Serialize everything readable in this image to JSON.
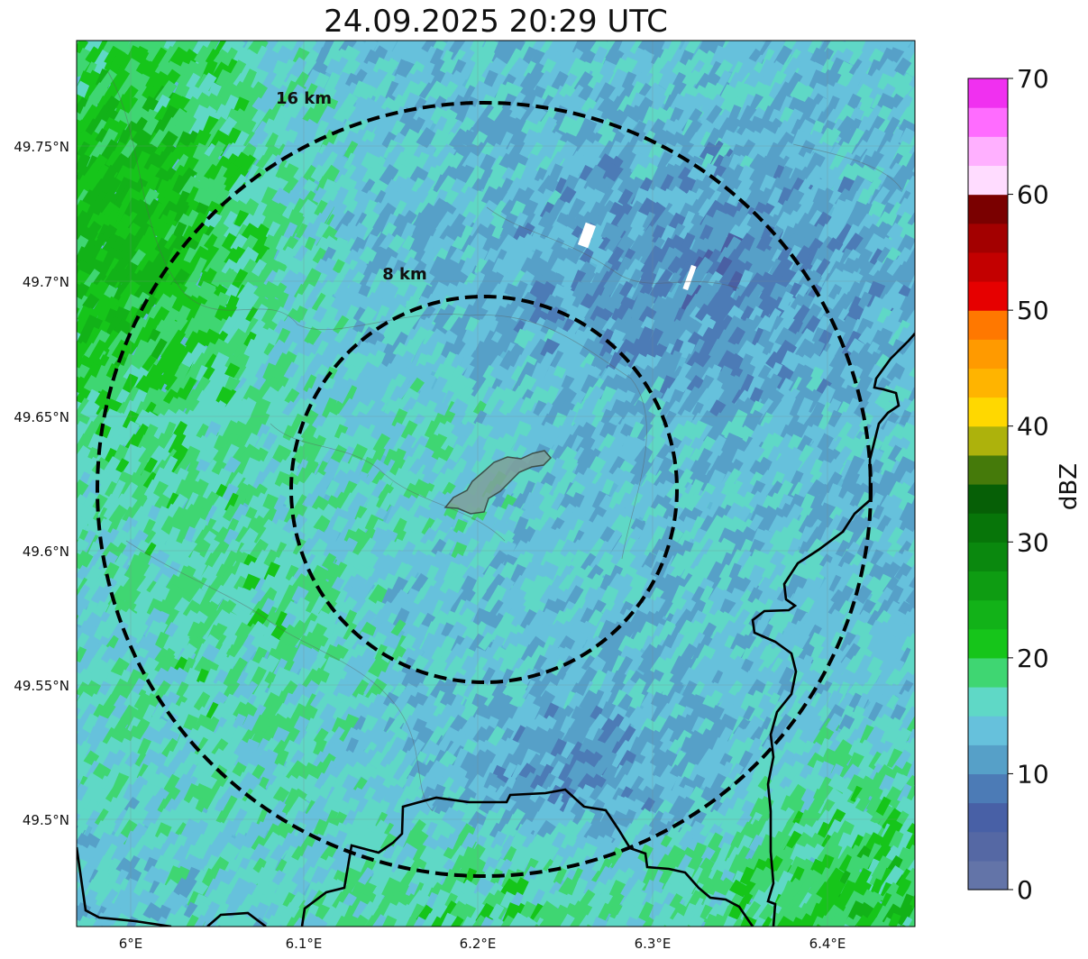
{
  "title": "24.09.2025 20:29 UTC",
  "rings": [
    {
      "label": "8 km",
      "radius_km": 8
    },
    {
      "label": "16 km",
      "radius_km": 16
    }
  ],
  "lon_ticks": [
    "6°E",
    "6.1°E",
    "6.2°E",
    "6.3°E",
    "6.4°E"
  ],
  "lat_ticks": [
    "49.75°N",
    "49.7°N",
    "49.65°N",
    "49.6°N",
    "49.55°N",
    "49.5°N"
  ],
  "colorbar": {
    "label": "dBZ",
    "ticks": [
      "0",
      "10",
      "20",
      "30",
      "40",
      "50",
      "60",
      "70"
    ],
    "min": 0,
    "max": 70,
    "step": 2.5,
    "colors": [
      "#6374a8",
      "#5568a4",
      "#4860a6",
      "#4c7bb6",
      "#56a0c8",
      "#66c1dc",
      "#5fd8c6",
      "#3fd672",
      "#16c51a",
      "#12b218",
      "#0e9c12",
      "#0a880e",
      "#077509",
      "#065f06",
      "#457a0a",
      "#adb20c",
      "#ffd800",
      "#ffb400",
      "#ff9a00",
      "#ff7800",
      "#e60000",
      "#c30000",
      "#a30000",
      "#7a0000",
      "#ffdcff",
      "#ffb0ff",
      "#ff6cff",
      "#f030f0"
    ]
  },
  "palette": {
    "ring": "#000000",
    "border": "#000000",
    "city": "#7fa09a"
  }
}
